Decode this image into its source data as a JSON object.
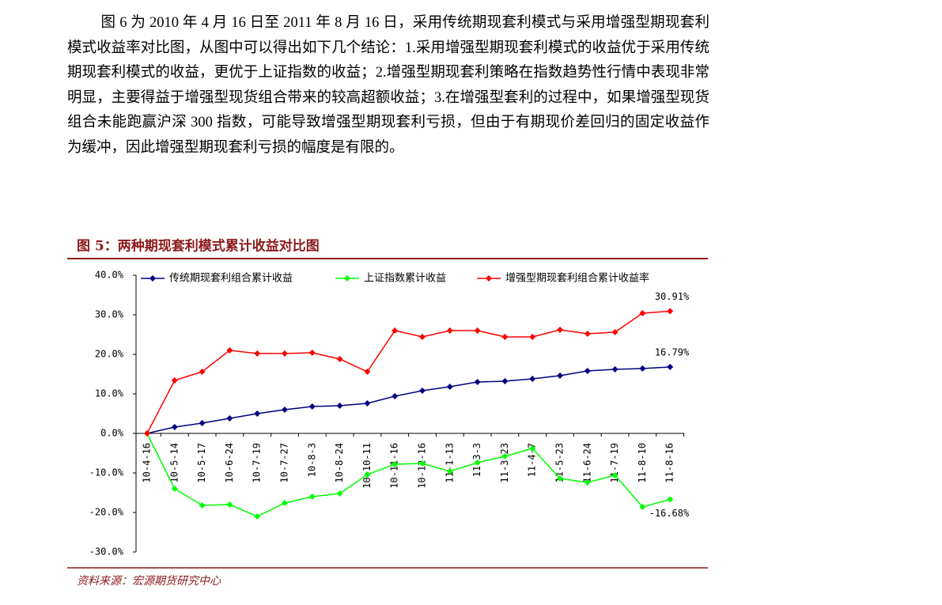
{
  "paragraph": "图 6 为 2010 年 4 月 16 日至 2011 年 8 月 16 日，采用传统期现套利模式与采用增强型期现套利模式收益率对比图，从图中可以得出如下几个结论：1.采用增强型期现套利模式的收益优于采用传统期现套利模式的收益，更优于上证指数的收益；2.增强型期现套利策略在指数趋势性行情中表现非常明显，主要得益于增强型现货组合带来的较高超额收益；3.在增强型套利的过程中，如果增强型现货组合未能跑赢沪深 300 指数，可能导致增强型期现套利亏损，但由于有期现价差回归的固定收益作为缓冲，因此增强型期现套利亏损的幅度是有限的。",
  "figure": {
    "title": "图 5：两种期现套利模式累计收益对比图",
    "source": "资料来源：宏源期货研究中心"
  },
  "chart_data": {
    "type": "line",
    "categories": [
      "10-4-16",
      "10-5-14",
      "10-5-17",
      "10-6-24",
      "10-7-19",
      "10-7-27",
      "10-8-3",
      "10-8-24",
      "10-10-11",
      "10-11-16",
      "10-12-16",
      "11-1-13",
      "11-3-3",
      "11-3-23",
      "11-4-7",
      "11-5-23",
      "11-6-24",
      "11-7-19",
      "11-8-10",
      "11-8-16"
    ],
    "series": [
      {
        "name": "传统期现套利组合累计收益",
        "color": "#000080",
        "values": [
          0,
          1.6,
          2.6,
          3.8,
          5.0,
          6.0,
          6.8,
          7.0,
          7.6,
          9.4,
          10.8,
          11.8,
          13.0,
          13.2,
          13.8,
          14.6,
          15.8,
          16.2,
          16.4,
          16.79
        ],
        "value_labels": [
          null,
          null,
          null,
          null,
          null,
          null,
          null,
          null,
          null,
          null,
          null,
          null,
          null,
          null,
          null,
          null,
          null,
          null,
          null,
          "16.79%"
        ]
      },
      {
        "name": "上证指数累计收益",
        "color": "#00ff00",
        "values": [
          0,
          -14,
          -18.2,
          -18,
          -21,
          -17.6,
          -16,
          -15.2,
          -10.4,
          -7.8,
          -7.6,
          -9.6,
          -7.4,
          -5.8,
          -3.8,
          -11.4,
          -12.4,
          -10.6,
          -18.6,
          -16.68
        ],
        "value_labels": [
          null,
          null,
          null,
          null,
          null,
          null,
          null,
          null,
          null,
          null,
          null,
          null,
          null,
          null,
          null,
          null,
          null,
          null,
          null,
          "-16.68%"
        ]
      },
      {
        "name": "增强型期现套利组合累计收益率",
        "color": "#ff0000",
        "values": [
          0,
          13.4,
          15.6,
          21,
          20.2,
          20.2,
          20.4,
          18.8,
          15.6,
          26,
          24.4,
          26,
          26,
          24.4,
          24.4,
          26.2,
          25.2,
          25.6,
          30.4,
          30.91
        ],
        "value_labels": [
          null,
          null,
          null,
          null,
          null,
          null,
          null,
          null,
          null,
          null,
          null,
          null,
          null,
          null,
          null,
          null,
          null,
          null,
          null,
          "30.91%"
        ]
      }
    ],
    "ylim": [
      -30,
      40
    ],
    "yticks": [
      {
        "value": 40,
        "label": "40.0%"
      },
      {
        "value": 30,
        "label": "30.0%"
      },
      {
        "value": 20,
        "label": "20.0%"
      },
      {
        "value": 10,
        "label": "10.0%"
      },
      {
        "value": 0,
        "label": "0.0%"
      },
      {
        "value": -10,
        "label": "-10.0%"
      },
      {
        "value": -20,
        "label": "-20.0%"
      },
      {
        "value": -30,
        "label": "-30.0%"
      }
    ],
    "legend": "top"
  }
}
